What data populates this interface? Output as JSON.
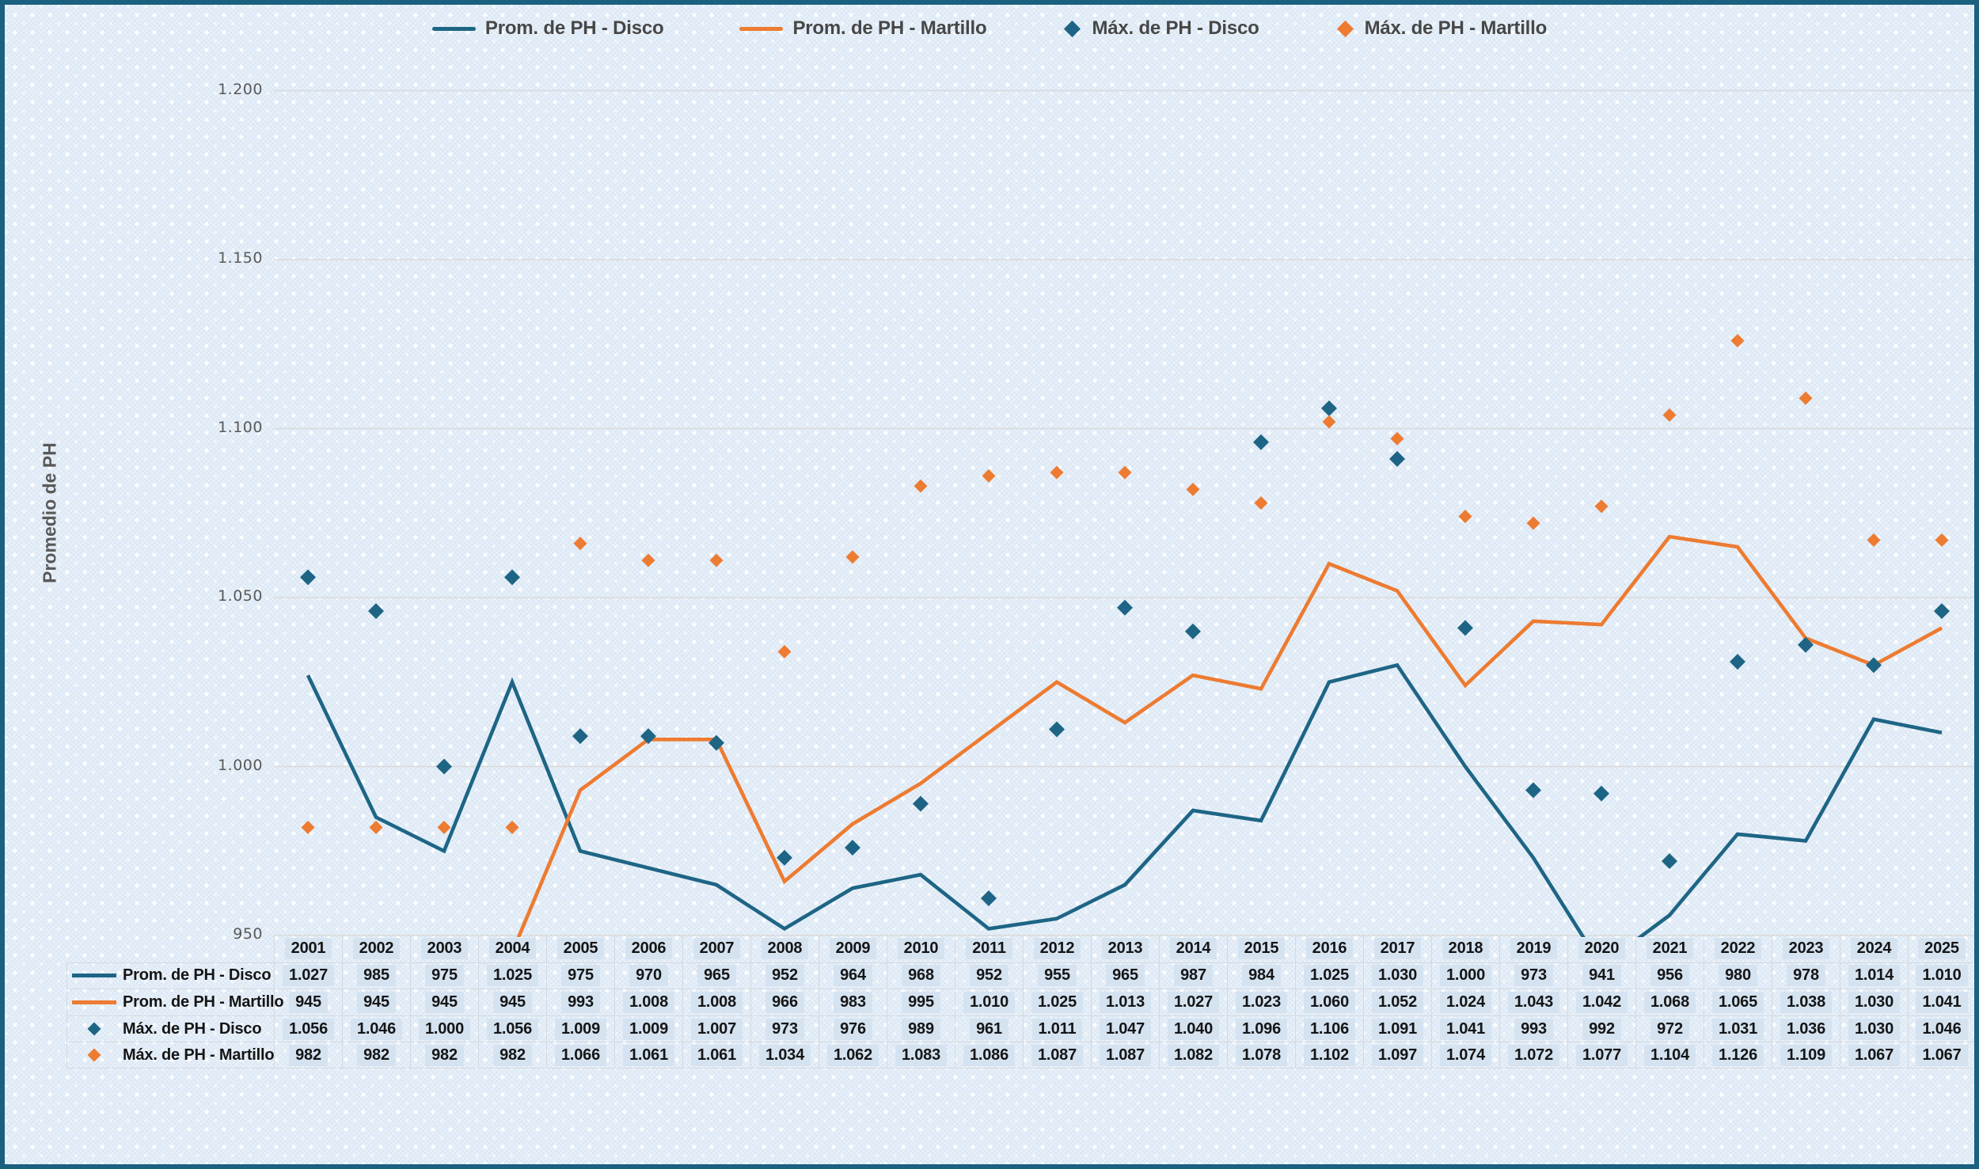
{
  "colors": {
    "frame": "#1b607f",
    "background": "#dce8f5",
    "gridline": "#d9d9d9",
    "axis_text": "#595959",
    "legend_text": "#474747",
    "cell_highlight": "#d5e3f1",
    "disco": "#1e6585",
    "martillo": "#ed7b31"
  },
  "chart_data": {
    "type": "combo",
    "title": "",
    "xlabel": "",
    "ylabel": "Promedio de PH",
    "grid": true,
    "legend_position": "top",
    "data_table_shown": true,
    "number_format": "thousands-dot",
    "categories": [
      "2001",
      "2002",
      "2003",
      "2004",
      "2005",
      "2006",
      "2007",
      "2008",
      "2009",
      "2010",
      "2011",
      "2012",
      "2013",
      "2014",
      "2015",
      "2016",
      "2017",
      "2018",
      "2019",
      "2020",
      "2021",
      "2022",
      "2023",
      "2024",
      "2025"
    ],
    "y_axis": {
      "min": 950,
      "max": 1200,
      "step": 50,
      "ticks": [
        {
          "value": 950,
          "label": "950"
        },
        {
          "value": 1000,
          "label": "1.000"
        },
        {
          "value": 1050,
          "label": "1.050"
        },
        {
          "value": 1100,
          "label": "1.100"
        },
        {
          "value": 1150,
          "label": "1.150"
        },
        {
          "value": 1200,
          "label": "1.200"
        }
      ]
    },
    "series": [
      {
        "name": "Prom. de PH - Disco",
        "type": "line",
        "color": "#1e6585",
        "values": [
          1027,
          985,
          975,
          1025,
          975,
          970,
          965,
          952,
          964,
          968,
          952,
          955,
          965,
          987,
          984,
          1025,
          1030,
          1000,
          973,
          941,
          956,
          980,
          978,
          1014,
          1010
        ]
      },
      {
        "name": "Prom. de PH - Martillo",
        "type": "line",
        "color": "#ed7b31",
        "values": [
          945,
          945,
          945,
          945,
          993,
          1008,
          1008,
          966,
          983,
          995,
          1010,
          1025,
          1013,
          1027,
          1023,
          1060,
          1052,
          1024,
          1043,
          1042,
          1068,
          1065,
          1038,
          1030,
          1041
        ]
      },
      {
        "name": "Máx. de PH - Disco",
        "type": "scatter",
        "marker": "diamond",
        "color": "#1e6585",
        "values": [
          1056,
          1046,
          1000,
          1056,
          1009,
          1009,
          1007,
          973,
          976,
          989,
          961,
          1011,
          1047,
          1040,
          1096,
          1106,
          1091,
          1041,
          993,
          992,
          972,
          1031,
          1036,
          1030,
          1046
        ]
      },
      {
        "name": "Máx. de PH - Martillo",
        "type": "scatter",
        "marker": "diamond",
        "color": "#ed7b31",
        "values": [
          982,
          982,
          982,
          982,
          1066,
          1061,
          1061,
          1034,
          1062,
          1083,
          1086,
          1087,
          1087,
          1082,
          1078,
          1102,
          1097,
          1074,
          1072,
          1077,
          1104,
          1126,
          1109,
          1067,
          1067
        ]
      }
    ]
  }
}
